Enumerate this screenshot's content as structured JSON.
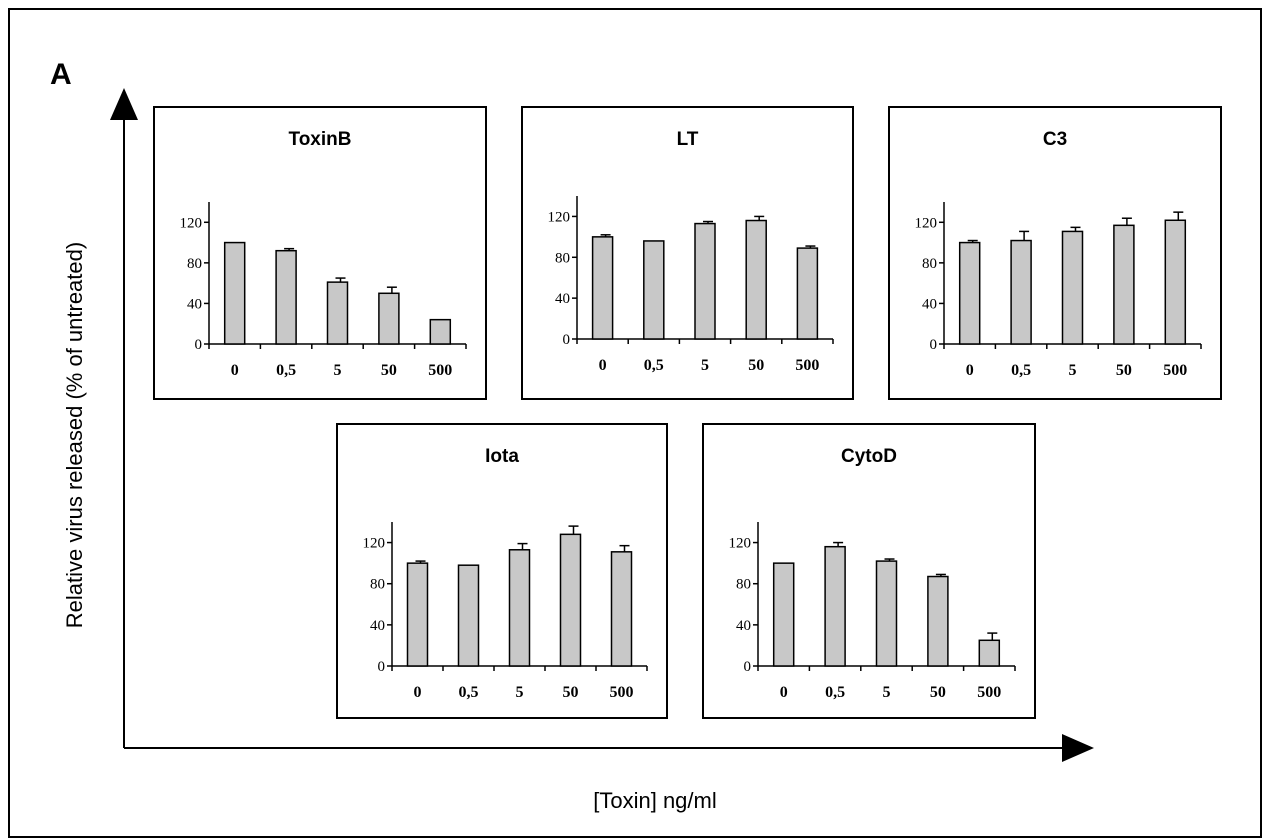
{
  "figure": {
    "panel_letter": "A",
    "ylabel": "Relative virus released (% of untreated)",
    "xlabel": "[Toxin] ng/ml"
  },
  "chart_data": [
    {
      "type": "bar",
      "title": "ToxinB",
      "categories": [
        "0",
        "0,5",
        "5",
        "50",
        "500"
      ],
      "values": [
        100,
        92,
        61,
        50,
        24
      ],
      "errors": [
        0,
        2,
        4,
        6,
        0
      ],
      "yticks": [
        "0",
        "40",
        "80",
        "120"
      ],
      "ylim": [
        0,
        140
      ],
      "bar_color": "#c8c8c8"
    },
    {
      "type": "bar",
      "title": "LT",
      "categories": [
        "0",
        "0,5",
        "5",
        "50",
        "500"
      ],
      "values": [
        100,
        96,
        113,
        116,
        89
      ],
      "errors": [
        2,
        0,
        2,
        4,
        2
      ],
      "yticks": [
        "0",
        "40",
        "80",
        "120"
      ],
      "ylim": [
        0,
        140
      ],
      "bar_color": "#c8c8c8"
    },
    {
      "type": "bar",
      "title": "C3",
      "categories": [
        "0",
        "0,5",
        "5",
        "50",
        "500"
      ],
      "values": [
        100,
        102,
        111,
        117,
        122
      ],
      "errors": [
        2,
        9,
        4,
        7,
        8
      ],
      "yticks": [
        "0",
        "40",
        "80",
        "120"
      ],
      "ylim": [
        0,
        140
      ],
      "bar_color": "#c8c8c8"
    },
    {
      "type": "bar",
      "title": "Iota",
      "categories": [
        "0",
        "0,5",
        "5",
        "50",
        "500"
      ],
      "values": [
        100,
        98,
        113,
        128,
        111
      ],
      "errors": [
        2,
        0,
        6,
        8,
        6
      ],
      "yticks": [
        "0",
        "40",
        "80",
        "120"
      ],
      "ylim": [
        0,
        140
      ],
      "bar_color": "#c8c8c8"
    },
    {
      "type": "bar",
      "title": "CytoD",
      "categories": [
        "0",
        "0,5",
        "5",
        "50",
        "500"
      ],
      "values": [
        100,
        116,
        102,
        87,
        25
      ],
      "errors": [
        0,
        4,
        2,
        2,
        7
      ],
      "yticks": [
        "0",
        "40",
        "80",
        "120"
      ],
      "ylim": [
        0,
        140
      ],
      "bar_color": "#c8c8c8"
    }
  ]
}
